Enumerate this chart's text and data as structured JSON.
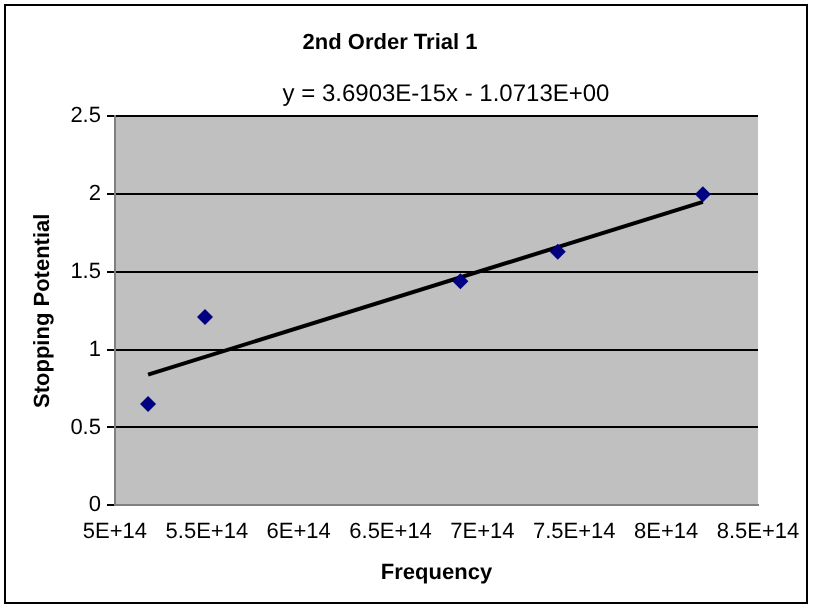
{
  "chart_data": {
    "type": "scatter",
    "title": "2nd Order Trial 1",
    "xlabel": "Frequency",
    "ylabel": "Stopping Potential",
    "annotations": [
      "y = 3.6903E-15x - 1.0713E+00"
    ],
    "series": [
      {
        "color": "#000080",
        "marker": "diamond",
        "x": [
          518000000000000.0,
          549000000000000.0,
          688000000000000.0,
          741000000000000.0,
          820000000000000.0
        ],
        "values": [
          0.65,
          1.21,
          1.44,
          1.63,
          2.0
        ]
      },
      {
        "type": "line",
        "color": "#000000",
        "marker": "none",
        "x": [
          518000000000000.0,
          820000000000000.0
        ],
        "values": [
          0.84,
          1.95
        ]
      }
    ],
    "xlim": [
      500000000000000.0,
      850000000000000.0
    ],
    "xticks": [
      {
        "value": 500000000000000.0,
        "label": "5E+14"
      },
      {
        "value": 550000000000000.0,
        "label": "5.5E+14"
      },
      {
        "value": 600000000000000.0,
        "label": "6E+14"
      },
      {
        "value": 650000000000000.0,
        "label": "6.5E+14"
      },
      {
        "value": 700000000000000.0,
        "label": "7E+14"
      },
      {
        "value": 750000000000000.0,
        "label": "7.5E+14"
      },
      {
        "value": 800000000000000.0,
        "label": "8E+14"
      },
      {
        "value": 850000000000000.0,
        "label": "8.5E+14"
      }
    ],
    "ylim": [
      0,
      2.5
    ],
    "yticks": [
      0,
      0.5,
      1,
      1.5,
      2,
      2.5
    ],
    "grid": "y",
    "legend": false
  }
}
